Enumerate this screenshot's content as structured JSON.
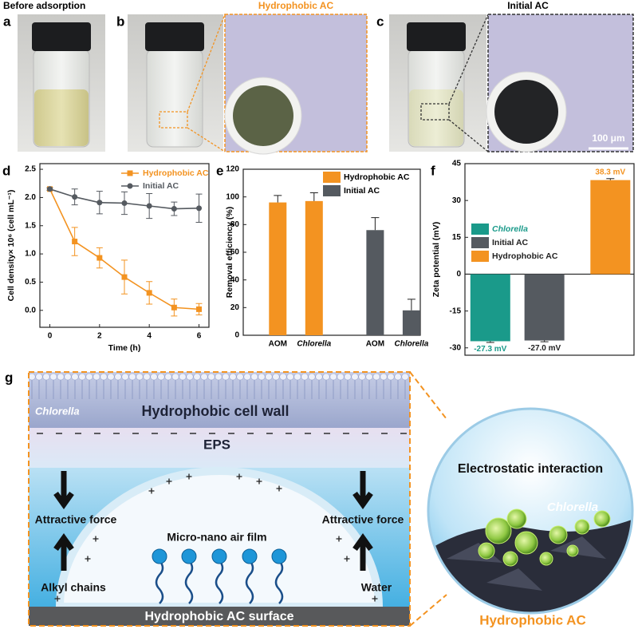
{
  "panels": {
    "a": {
      "label": "a",
      "title": "Before adsorption"
    },
    "b": {
      "label": "b",
      "title": "Hydrophobic AC"
    },
    "c": {
      "label": "c",
      "title": "Initial AC",
      "scale_bar": "100 μm"
    }
  },
  "chart_data": [
    {
      "type": "line",
      "panel_label": "d",
      "x_label": "Time (h)",
      "y_label": "Cell density× 10⁶ (cell mL⁻¹)",
      "x": [
        0,
        1,
        2,
        3,
        4,
        5,
        6
      ],
      "xlim": [
        -0.4,
        6.4
      ],
      "xticks": [
        0,
        2,
        4,
        6
      ],
      "ylim": [
        -0.3,
        2.6
      ],
      "yticks": [
        {
          "value": 0,
          "label": "0.0"
        },
        0.5,
        {
          "value": 1,
          "label": "1.0"
        },
        1.5,
        {
          "value": 2,
          "label": "2.0"
        },
        2.5
      ],
      "legend": "upper right",
      "series": [
        {
          "name": "Hydrophobic AC",
          "color": "#f39321",
          "marker": "square",
          "values": [
            2.15,
            1.22,
            0.93,
            0.59,
            0.31,
            0.05,
            0.02
          ],
          "errors": [
            0.02,
            0.25,
            0.18,
            0.3,
            0.2,
            0.15,
            0.1
          ]
        },
        {
          "name": "Initial AC",
          "color": "#555a60",
          "marker": "circle",
          "values": [
            2.15,
            2.01,
            1.91,
            1.9,
            1.85,
            1.8,
            1.81
          ],
          "errors": [
            0.02,
            0.14,
            0.2,
            0.2,
            0.22,
            0.12,
            0.25
          ]
        }
      ]
    },
    {
      "type": "bar",
      "panel_label": "e",
      "y_label": "Removal efficiency (%)",
      "categories": [
        "AOM",
        "Chlorella",
        "AOM",
        "Chlorella"
      ],
      "ylim": [
        0,
        120
      ],
      "yticks": [
        0,
        20,
        40,
        60,
        80,
        100,
        120
      ],
      "legend": "upper right",
      "series": [
        {
          "name": "Hydrophobic AC",
          "color": "#f39321",
          "values": [
            96,
            97,
            null,
            null
          ],
          "errors": [
            5,
            6,
            null,
            null
          ]
        },
        {
          "name": "Initial AC",
          "color": "#555a60",
          "values": [
            null,
            null,
            76,
            18
          ],
          "errors": [
            null,
            null,
            9,
            8
          ]
        }
      ]
    },
    {
      "type": "bar",
      "panel_label": "f",
      "y_label": "Zeta potential (mV)",
      "ylim": [
        -33,
        45
      ],
      "yticks": [
        -30,
        -15,
        0,
        15,
        30,
        45
      ],
      "legend": "center left",
      "series": [
        {
          "name": "Chlorella",
          "color": "#1a9a8a",
          "values": [
            -27.3
          ],
          "errors": [
            0.5
          ],
          "value_labels": [
            "-27.3 mV"
          ]
        },
        {
          "name": "Initial AC",
          "color": "#555a60",
          "values": [
            -27.0
          ],
          "errors": [
            0.5
          ],
          "value_labels": [
            "-27.0 mV"
          ]
        },
        {
          "name": "Hydrophobic AC",
          "color": "#f39321",
          "values": [
            38.3
          ],
          "errors": [
            0.6
          ],
          "value_labels": [
            "38.3 mV"
          ]
        }
      ]
    }
  ],
  "diagram": {
    "label": "g",
    "cell": "Chlorella",
    "cell_wall": "Hydrophobic cell wall",
    "eps": "EPS",
    "force_left": "Attractive force",
    "force_right": "Attractive force",
    "air_film": "Micro-nano air film",
    "chains": "Alkyl chains",
    "water": "Water",
    "surface": "Hydrophobic AC surface",
    "interaction": "Electrostatic interaction",
    "zoom_cell": "Chlorella",
    "zoom_title": "Hydrophobic AC"
  }
}
